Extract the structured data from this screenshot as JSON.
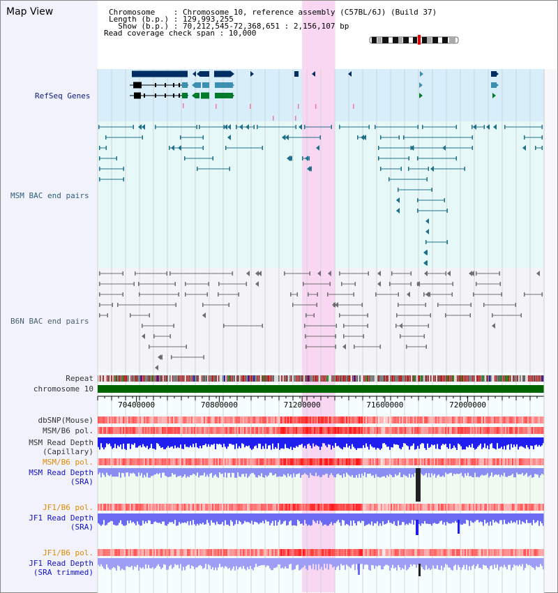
{
  "app": {
    "title": "Map View"
  },
  "info": {
    "chromosome_label": "Chromosome    : ",
    "chromosome_value": "Chromosome 10, reference assembly (C57BL/6J) (Build 37)",
    "length_label": "Length (b.p.) : ",
    "length_value": "129,993,255",
    "show_label": "  Show (b.p.) : ",
    "show_value": "70,212,545-72,368,651 : 2,156,107 bp",
    "coverage_label": "Read coverage check span : ",
    "coverage_value": "10,000"
  },
  "tracks": {
    "refseq": "RefSeq Genes",
    "msm_bac": "MSM BAC end pairs",
    "b6n_bac": "B6N BAC end pairs",
    "repeat": "Repeat",
    "chromosome": "chromosome 10",
    "dbsnp": "dbSNP(Mouse)",
    "msm_b6_pol_1": "MSM/B6 pol.",
    "msm_read_depth_cap_1": "MSM Read Depth",
    "msm_read_depth_cap_2": "(Capillary)",
    "msm_b6_pol_2": "MSM/B6 pol.",
    "msm_read_depth_sra_1": "MSM Read Depth",
    "msm_read_depth_sra_2": "(SRA)",
    "jf1_b6_pol_1": "JF1/B6 pol.",
    "jf1_read_depth_1": "JF1 Read Depth",
    "jf1_read_depth_2": "(SRA)",
    "jf1_b6_pol_2": "JF1/B6 pol.",
    "jf1_read_depth_trim_1": "JF1 Read Depth",
    "jf1_read_depth_trim_2": "(SRA trimmed)"
  },
  "axis": {
    "ticks": [
      "70400000",
      "70800000",
      "71200000",
      "71600000",
      "72000000"
    ],
    "tick_values": [
      70400000,
      70800000,
      71200000,
      71600000,
      72000000
    ],
    "range": [
      70212545,
      72368651
    ]
  },
  "highlight": {
    "range": [
      71200000,
      71360000
    ],
    "color": "#f9d7f3"
  },
  "colors": {
    "refseq_bg": "#d8eefa",
    "msm_bg": "#e6f8f8",
    "b6n_bg": "#f4f4f8",
    "left_panel": "#f1f2fb",
    "chromosome_bar": "#006400",
    "gene_dark": "#002e62",
    "gene_teal": "#3c8fb0",
    "gene_green": "#007a2b",
    "depth_blue": "#1e1ef0",
    "depth_light": "#6b6bf2"
  }
}
